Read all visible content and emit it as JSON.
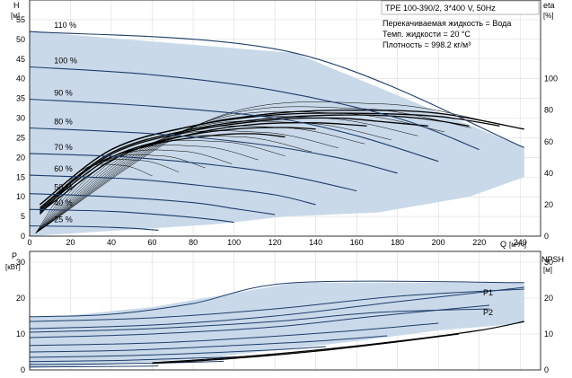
{
  "chart_data": [
    {
      "type": "line",
      "panel": "top",
      "title": "TPE 100-390/2, 3*400 V, 50Hz",
      "annotations": [
        "Перекачиваемая жидкость = Вода",
        "Темп. жидкости = 20 °C",
        "Плотность = 998.2 кг/м³"
      ],
      "y_left_label": "H",
      "y_left_unit": "[м]",
      "y_right_label": "eta",
      "y_right_unit": "[%]",
      "x_label": "Q",
      "x_unit": "[м³/ч]",
      "xlim": [
        0,
        250
      ],
      "ylim": [
        0,
        60
      ],
      "y2lim": [
        0,
        150
      ],
      "x_ticks": [
        "0",
        "20",
        "40",
        "60",
        "80",
        "100",
        "120",
        "140",
        "160",
        "180",
        "200",
        "220",
        "240"
      ],
      "y_ticks": [
        "0",
        "5",
        "10",
        "15",
        "20",
        "25",
        "30",
        "35",
        "40",
        "45",
        "50",
        "55"
      ],
      "y2_ticks": [
        "0",
        "20",
        "40",
        "60",
        "80",
        "100"
      ],
      "grid": true,
      "envelope": [
        [
          0,
          52
        ],
        [
          130,
          46.5
        ],
        [
          242,
          22.5
        ],
        [
          242,
          15
        ],
        [
          215,
          10
        ],
        [
          170,
          6
        ],
        [
          125,
          5
        ],
        [
          90,
          3
        ],
        [
          0,
          0
        ]
      ],
      "head_curves": [
        {
          "label": "110 %",
          "q": [
            0,
            130,
            242
          ],
          "h": [
            52,
            46.5,
            22.5
          ]
        },
        {
          "label": "100 %",
          "q": [
            0,
            60,
            120,
            180,
            220
          ],
          "h": [
            43,
            41,
            37,
            30,
            22
          ]
        },
        {
          "label": "90 %",
          "q": [
            0,
            60,
            120,
            160,
            200
          ],
          "h": [
            34.8,
            33,
            30,
            25.5,
            19
          ]
        },
        {
          "label": "80 %",
          "q": [
            0,
            60,
            110,
            150,
            180
          ],
          "h": [
            27.5,
            26,
            23.5,
            20,
            16
          ]
        },
        {
          "label": "70 %",
          "q": [
            0,
            50,
            100,
            130,
            160
          ],
          "h": [
            21,
            20,
            17.5,
            15,
            11.5
          ]
        },
        {
          "label": "60 %",
          "q": [
            0,
            50,
            90,
            120,
            140
          ],
          "h": [
            15.5,
            14.5,
            12.5,
            10.5,
            8
          ]
        },
        {
          "label": "50 %",
          "q": [
            0,
            40,
            80,
            100,
            120
          ],
          "h": [
            10.8,
            10,
            8.5,
            7,
            5.5
          ]
        },
        {
          "label": "40 %",
          "q": [
            0,
            40,
            70,
            90,
            100
          ],
          "h": [
            6.8,
            6.3,
            5.2,
            4.2,
            3.5
          ]
        },
        {
          "label": "25 %",
          "q": [
            0,
            30,
            50,
            63
          ],
          "h": [
            2.6,
            2.4,
            2,
            1.5
          ]
        }
      ],
      "eta_curves": [
        {
          "q": [
            5,
            40,
            80,
            120,
            160,
            200,
            242
          ],
          "eta": [
            20,
            55,
            70,
            78,
            80,
            78,
            68
          ]
        },
        {
          "q": [
            5,
            40,
            80,
            120,
            160,
            200,
            230
          ],
          "eta": [
            20,
            55,
            70,
            77,
            78,
            76,
            70
          ]
        },
        {
          "q": [
            5,
            40,
            80,
            120,
            160,
            190,
            215
          ],
          "eta": [
            18,
            53,
            68,
            75,
            77,
            75,
            70
          ]
        },
        {
          "q": [
            5,
            40,
            80,
            120,
            150,
            170,
            195
          ],
          "eta": [
            17,
            52,
            67,
            74,
            75,
            73,
            70
          ]
        },
        {
          "q": [
            5,
            40,
            80,
            110,
            140,
            165
          ],
          "eta": [
            16,
            50,
            65,
            71,
            72,
            70
          ]
        },
        {
          "q": [
            5,
            40,
            70,
            100,
            125,
            140
          ],
          "eta": [
            15,
            48,
            62,
            68,
            69,
            68
          ]
        },
        {
          "q": [
            5,
            30,
            60,
            90,
            110,
            125
          ],
          "eta": [
            14,
            44,
            58,
            64,
            65,
            63
          ]
        }
      ]
    },
    {
      "type": "line",
      "panel": "bottom",
      "y_left_label": "P",
      "y_left_unit": "[кВт]",
      "y_right_label": "NPSH",
      "y_right_unit": "[м]",
      "xlim": [
        0,
        250
      ],
      "ylim": [
        0,
        33
      ],
      "y_ticks": [
        "0",
        "10",
        "20",
        "30"
      ],
      "y2_ticks": [
        "0",
        "10",
        "20",
        "30"
      ],
      "grid": true,
      "series_labels": [
        "P1",
        "P2"
      ],
      "envelope": [
        [
          0,
          14.8
        ],
        [
          20,
          15.2
        ],
        [
          60,
          17.5
        ],
        [
          130,
          24.3
        ],
        [
          242,
          24.3
        ],
        [
          242,
          13
        ],
        [
          200,
          11
        ],
        [
          160,
          8
        ],
        [
          120,
          5.5
        ],
        [
          80,
          3
        ],
        [
          40,
          1.5
        ],
        [
          0,
          0.5
        ]
      ],
      "p1_curves": [
        {
          "q": [
            0,
            40,
            80,
            130,
            242
          ],
          "p": [
            14.8,
            15.5,
            18.5,
            24.3,
            24.3
          ]
        },
        {
          "q": [
            0,
            60,
            120,
            180,
            242
          ],
          "p": [
            11.5,
            12.5,
            15,
            19,
            23
          ]
        },
        {
          "q": [
            0,
            60,
            120,
            170,
            225
          ],
          "p": [
            9,
            10,
            12,
            15,
            18
          ]
        },
        {
          "q": [
            0,
            60,
            110,
            160,
            200
          ],
          "p": [
            6.8,
            7.5,
            9,
            11,
            13
          ]
        },
        {
          "q": [
            0,
            50,
            100,
            140,
            175
          ],
          "p": [
            5,
            5.5,
            6.8,
            8,
            9.5
          ]
        },
        {
          "q": [
            0,
            50,
            90,
            120,
            145
          ],
          "p": [
            3.5,
            4,
            4.8,
            5.6,
            6.5
          ]
        },
        {
          "q": [
            0,
            40,
            70,
            100,
            120
          ],
          "p": [
            2.3,
            2.6,
            3.1,
            3.6,
            4.2
          ]
        },
        {
          "q": [
            0,
            40,
            70,
            95
          ],
          "p": [
            1.5,
            1.7,
            2,
            2.4
          ]
        },
        {
          "q": [
            0,
            30,
            50,
            63
          ],
          "p": [
            0.8,
            0.9,
            1,
            1.1
          ]
        }
      ],
      "p2_curves": [
        {
          "q": [
            0,
            60,
            120,
            180,
            242
          ],
          "p": [
            13.5,
            14.5,
            17,
            20.5,
            22.5
          ]
        },
        {
          "q": [
            0,
            60,
            120,
            170,
            225
          ],
          "p": [
            10.5,
            11.5,
            13.5,
            16,
            17
          ]
        }
      ],
      "npsh_curves": [
        {
          "q": [
            60,
            100,
            140,
            180,
            220,
            242
          ],
          "npsh": [
            2,
            3.5,
            5.5,
            8,
            11,
            13.5
          ]
        },
        {
          "q": [
            60,
            100,
            140,
            180,
            210
          ],
          "npsh": [
            1.8,
            3.2,
            5.2,
            7.8,
            10
          ]
        }
      ]
    }
  ]
}
